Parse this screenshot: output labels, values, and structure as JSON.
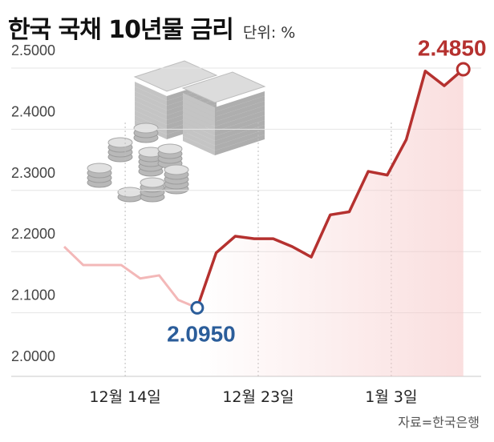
{
  "header": {
    "title": "한국 국채 10년물 금리",
    "unit": "단위: %"
  },
  "source": "자료=한국은행",
  "colors": {
    "line_up": "#b5312f",
    "line_down": "#f3b8b8",
    "min_marker": "#2b5d9a",
    "grid": "#bdbdbd"
  },
  "illustration": "money-stack-and-coins-icon",
  "chart_data": {
    "type": "line",
    "title": "한국 국채 10년물 금리",
    "ylabel": "단위: %",
    "ylim": [
      2.0,
      2.55
    ],
    "yticks": [
      "2.0000",
      "2.1000",
      "2.2000",
      "2.3000",
      "2.4000",
      "2.5000"
    ],
    "xticks": [
      {
        "label": "12월 14일",
        "index": 3
      },
      {
        "label": "12월 23일",
        "index": 10
      },
      {
        "label": "1월 3일",
        "index": 17
      }
    ],
    "values": [
      2.195,
      2.165,
      2.165,
      2.165,
      2.143,
      2.148,
      2.108,
      2.095,
      2.185,
      2.212,
      2.208,
      2.208,
      2.195,
      2.178,
      2.247,
      2.252,
      2.318,
      2.312,
      2.37,
      2.482,
      2.458,
      2.485
    ],
    "annotations": [
      {
        "text": "2.4850",
        "index": 21,
        "style": "max"
      },
      {
        "text": "2.0950",
        "index": 7,
        "style": "min"
      }
    ]
  }
}
